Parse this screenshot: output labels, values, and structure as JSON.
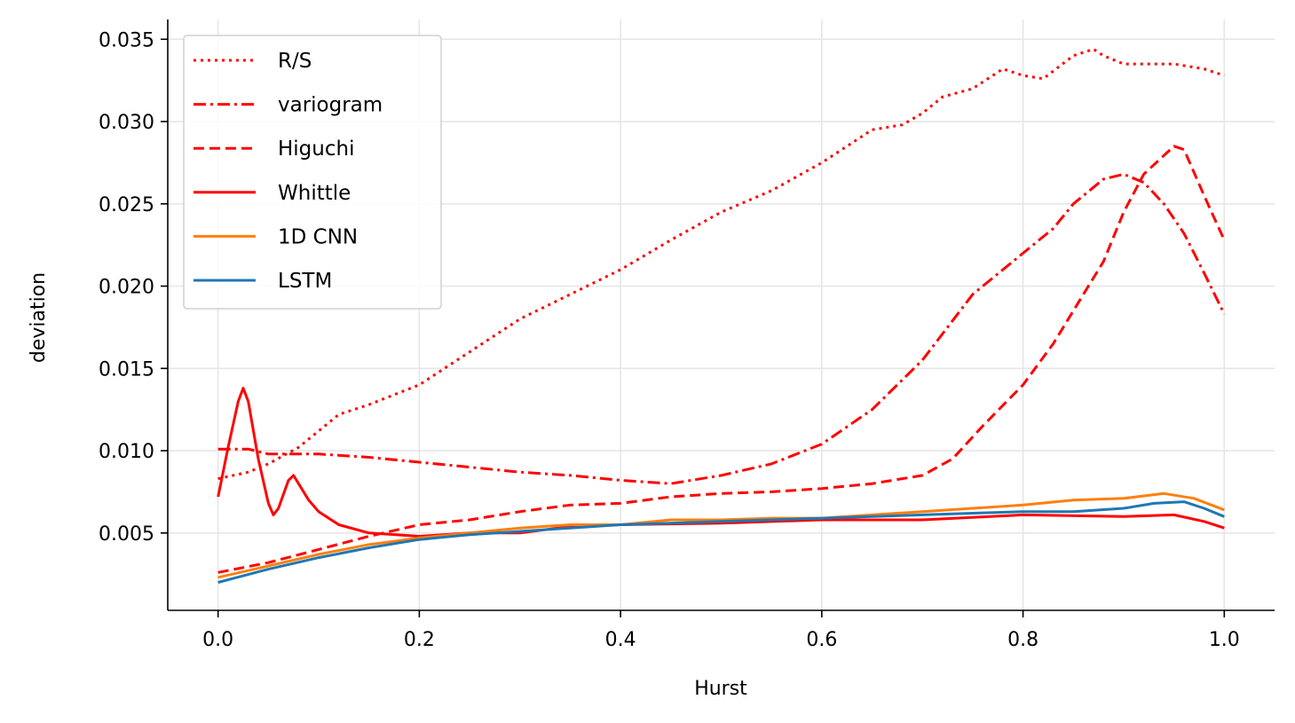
{
  "chart_data": {
    "type": "line",
    "title": "",
    "xlabel": "Hurst",
    "ylabel": "deviation",
    "xlim": [
      -0.05,
      1.05
    ],
    "ylim": [
      0.0003,
      0.0362
    ],
    "xticks": [
      0.0,
      0.2,
      0.4,
      0.6,
      0.8,
      1.0
    ],
    "xtick_labels": [
      "0.0",
      "0.2",
      "0.4",
      "0.6",
      "0.8",
      "1.0"
    ],
    "yticks": [
      0.005,
      0.01,
      0.015,
      0.02,
      0.025,
      0.03,
      0.035
    ],
    "ytick_labels": [
      "0.005",
      "0.010",
      "0.015",
      "0.020",
      "0.025",
      "0.030",
      "0.035"
    ],
    "grid": true,
    "legend_position": "upper-left",
    "series": [
      {
        "name": "R/S",
        "color": "#ff0000",
        "dash": "dotted",
        "x": [
          0.0,
          0.03,
          0.05,
          0.08,
          0.1,
          0.12,
          0.15,
          0.2,
          0.25,
          0.3,
          0.35,
          0.4,
          0.45,
          0.5,
          0.55,
          0.6,
          0.65,
          0.68,
          0.7,
          0.72,
          0.75,
          0.78,
          0.8,
          0.82,
          0.85,
          0.87,
          0.88,
          0.9,
          0.93,
          0.95,
          0.98,
          1.0
        ],
        "y": [
          0.0083,
          0.0087,
          0.0092,
          0.0102,
          0.0112,
          0.0122,
          0.0128,
          0.014,
          0.016,
          0.018,
          0.0195,
          0.021,
          0.0228,
          0.0245,
          0.0258,
          0.0275,
          0.0295,
          0.0298,
          0.0305,
          0.0315,
          0.032,
          0.0332,
          0.0328,
          0.0326,
          0.034,
          0.0344,
          0.034,
          0.0335,
          0.0335,
          0.0335,
          0.0332,
          0.0328
        ]
      },
      {
        "name": "variogram",
        "color": "#ff0000",
        "dash": "dashdot",
        "x": [
          0.0,
          0.03,
          0.05,
          0.1,
          0.15,
          0.2,
          0.25,
          0.3,
          0.35,
          0.4,
          0.45,
          0.5,
          0.55,
          0.6,
          0.65,
          0.7,
          0.75,
          0.8,
          0.83,
          0.85,
          0.88,
          0.9,
          0.92,
          0.94,
          0.96,
          0.98,
          1.0
        ],
        "y": [
          0.0101,
          0.0101,
          0.0098,
          0.0098,
          0.0096,
          0.0093,
          0.009,
          0.0087,
          0.0085,
          0.0082,
          0.008,
          0.0085,
          0.0092,
          0.0104,
          0.0125,
          0.0155,
          0.0195,
          0.022,
          0.0235,
          0.025,
          0.0265,
          0.0268,
          0.0263,
          0.025,
          0.0232,
          0.0208,
          0.0183
        ]
      },
      {
        "name": "Higuchi",
        "color": "#ff0000",
        "dash": "dashed",
        "x": [
          0.0,
          0.05,
          0.1,
          0.15,
          0.2,
          0.25,
          0.3,
          0.35,
          0.4,
          0.45,
          0.5,
          0.55,
          0.6,
          0.65,
          0.7,
          0.73,
          0.76,
          0.8,
          0.83,
          0.86,
          0.88,
          0.9,
          0.92,
          0.95,
          0.96,
          0.98,
          1.0
        ],
        "y": [
          0.0026,
          0.0032,
          0.004,
          0.0048,
          0.0055,
          0.0058,
          0.0063,
          0.0067,
          0.0068,
          0.0072,
          0.0074,
          0.0075,
          0.0077,
          0.008,
          0.0085,
          0.0095,
          0.0115,
          0.014,
          0.0165,
          0.0195,
          0.0215,
          0.0245,
          0.0268,
          0.0285,
          0.0283,
          0.0255,
          0.0228
        ]
      },
      {
        "name": "Whittle",
        "color": "#ff0000",
        "dash": "solid",
        "x": [
          0.0,
          0.01,
          0.02,
          0.025,
          0.03,
          0.04,
          0.05,
          0.055,
          0.06,
          0.07,
          0.075,
          0.08,
          0.09,
          0.1,
          0.12,
          0.15,
          0.2,
          0.25,
          0.3,
          0.35,
          0.4,
          0.5,
          0.6,
          0.7,
          0.8,
          0.9,
          0.95,
          0.98,
          1.0
        ],
        "y": [
          0.0072,
          0.0102,
          0.013,
          0.0138,
          0.013,
          0.0095,
          0.0068,
          0.0061,
          0.0065,
          0.0082,
          0.0085,
          0.008,
          0.007,
          0.0063,
          0.0055,
          0.005,
          0.0048,
          0.005,
          0.005,
          0.0054,
          0.0055,
          0.0056,
          0.0058,
          0.0058,
          0.0061,
          0.006,
          0.0061,
          0.0057,
          0.0053
        ]
      },
      {
        "name": "1D CNN",
        "color": "#ff7f0e",
        "dash": "solid",
        "x": [
          0.0,
          0.05,
          0.1,
          0.15,
          0.2,
          0.25,
          0.3,
          0.35,
          0.4,
          0.45,
          0.5,
          0.55,
          0.6,
          0.65,
          0.7,
          0.75,
          0.8,
          0.85,
          0.9,
          0.94,
          0.97,
          1.0
        ],
        "y": [
          0.0023,
          0.003,
          0.0037,
          0.0043,
          0.0047,
          0.005,
          0.0053,
          0.0055,
          0.0055,
          0.0058,
          0.0058,
          0.0059,
          0.0059,
          0.0061,
          0.0063,
          0.0065,
          0.0067,
          0.007,
          0.0071,
          0.0074,
          0.0071,
          0.0064
        ]
      },
      {
        "name": "LSTM",
        "color": "#1f77b4",
        "dash": "solid",
        "x": [
          0.0,
          0.05,
          0.1,
          0.15,
          0.2,
          0.25,
          0.3,
          0.35,
          0.4,
          0.45,
          0.5,
          0.55,
          0.6,
          0.65,
          0.7,
          0.75,
          0.8,
          0.85,
          0.9,
          0.93,
          0.96,
          0.98,
          1.0
        ],
        "y": [
          0.002,
          0.0028,
          0.0035,
          0.0041,
          0.0046,
          0.0049,
          0.0051,
          0.0053,
          0.0055,
          0.0056,
          0.0057,
          0.0058,
          0.0059,
          0.006,
          0.0061,
          0.0062,
          0.0063,
          0.0063,
          0.0065,
          0.0068,
          0.0069,
          0.0065,
          0.006
        ]
      }
    ]
  }
}
